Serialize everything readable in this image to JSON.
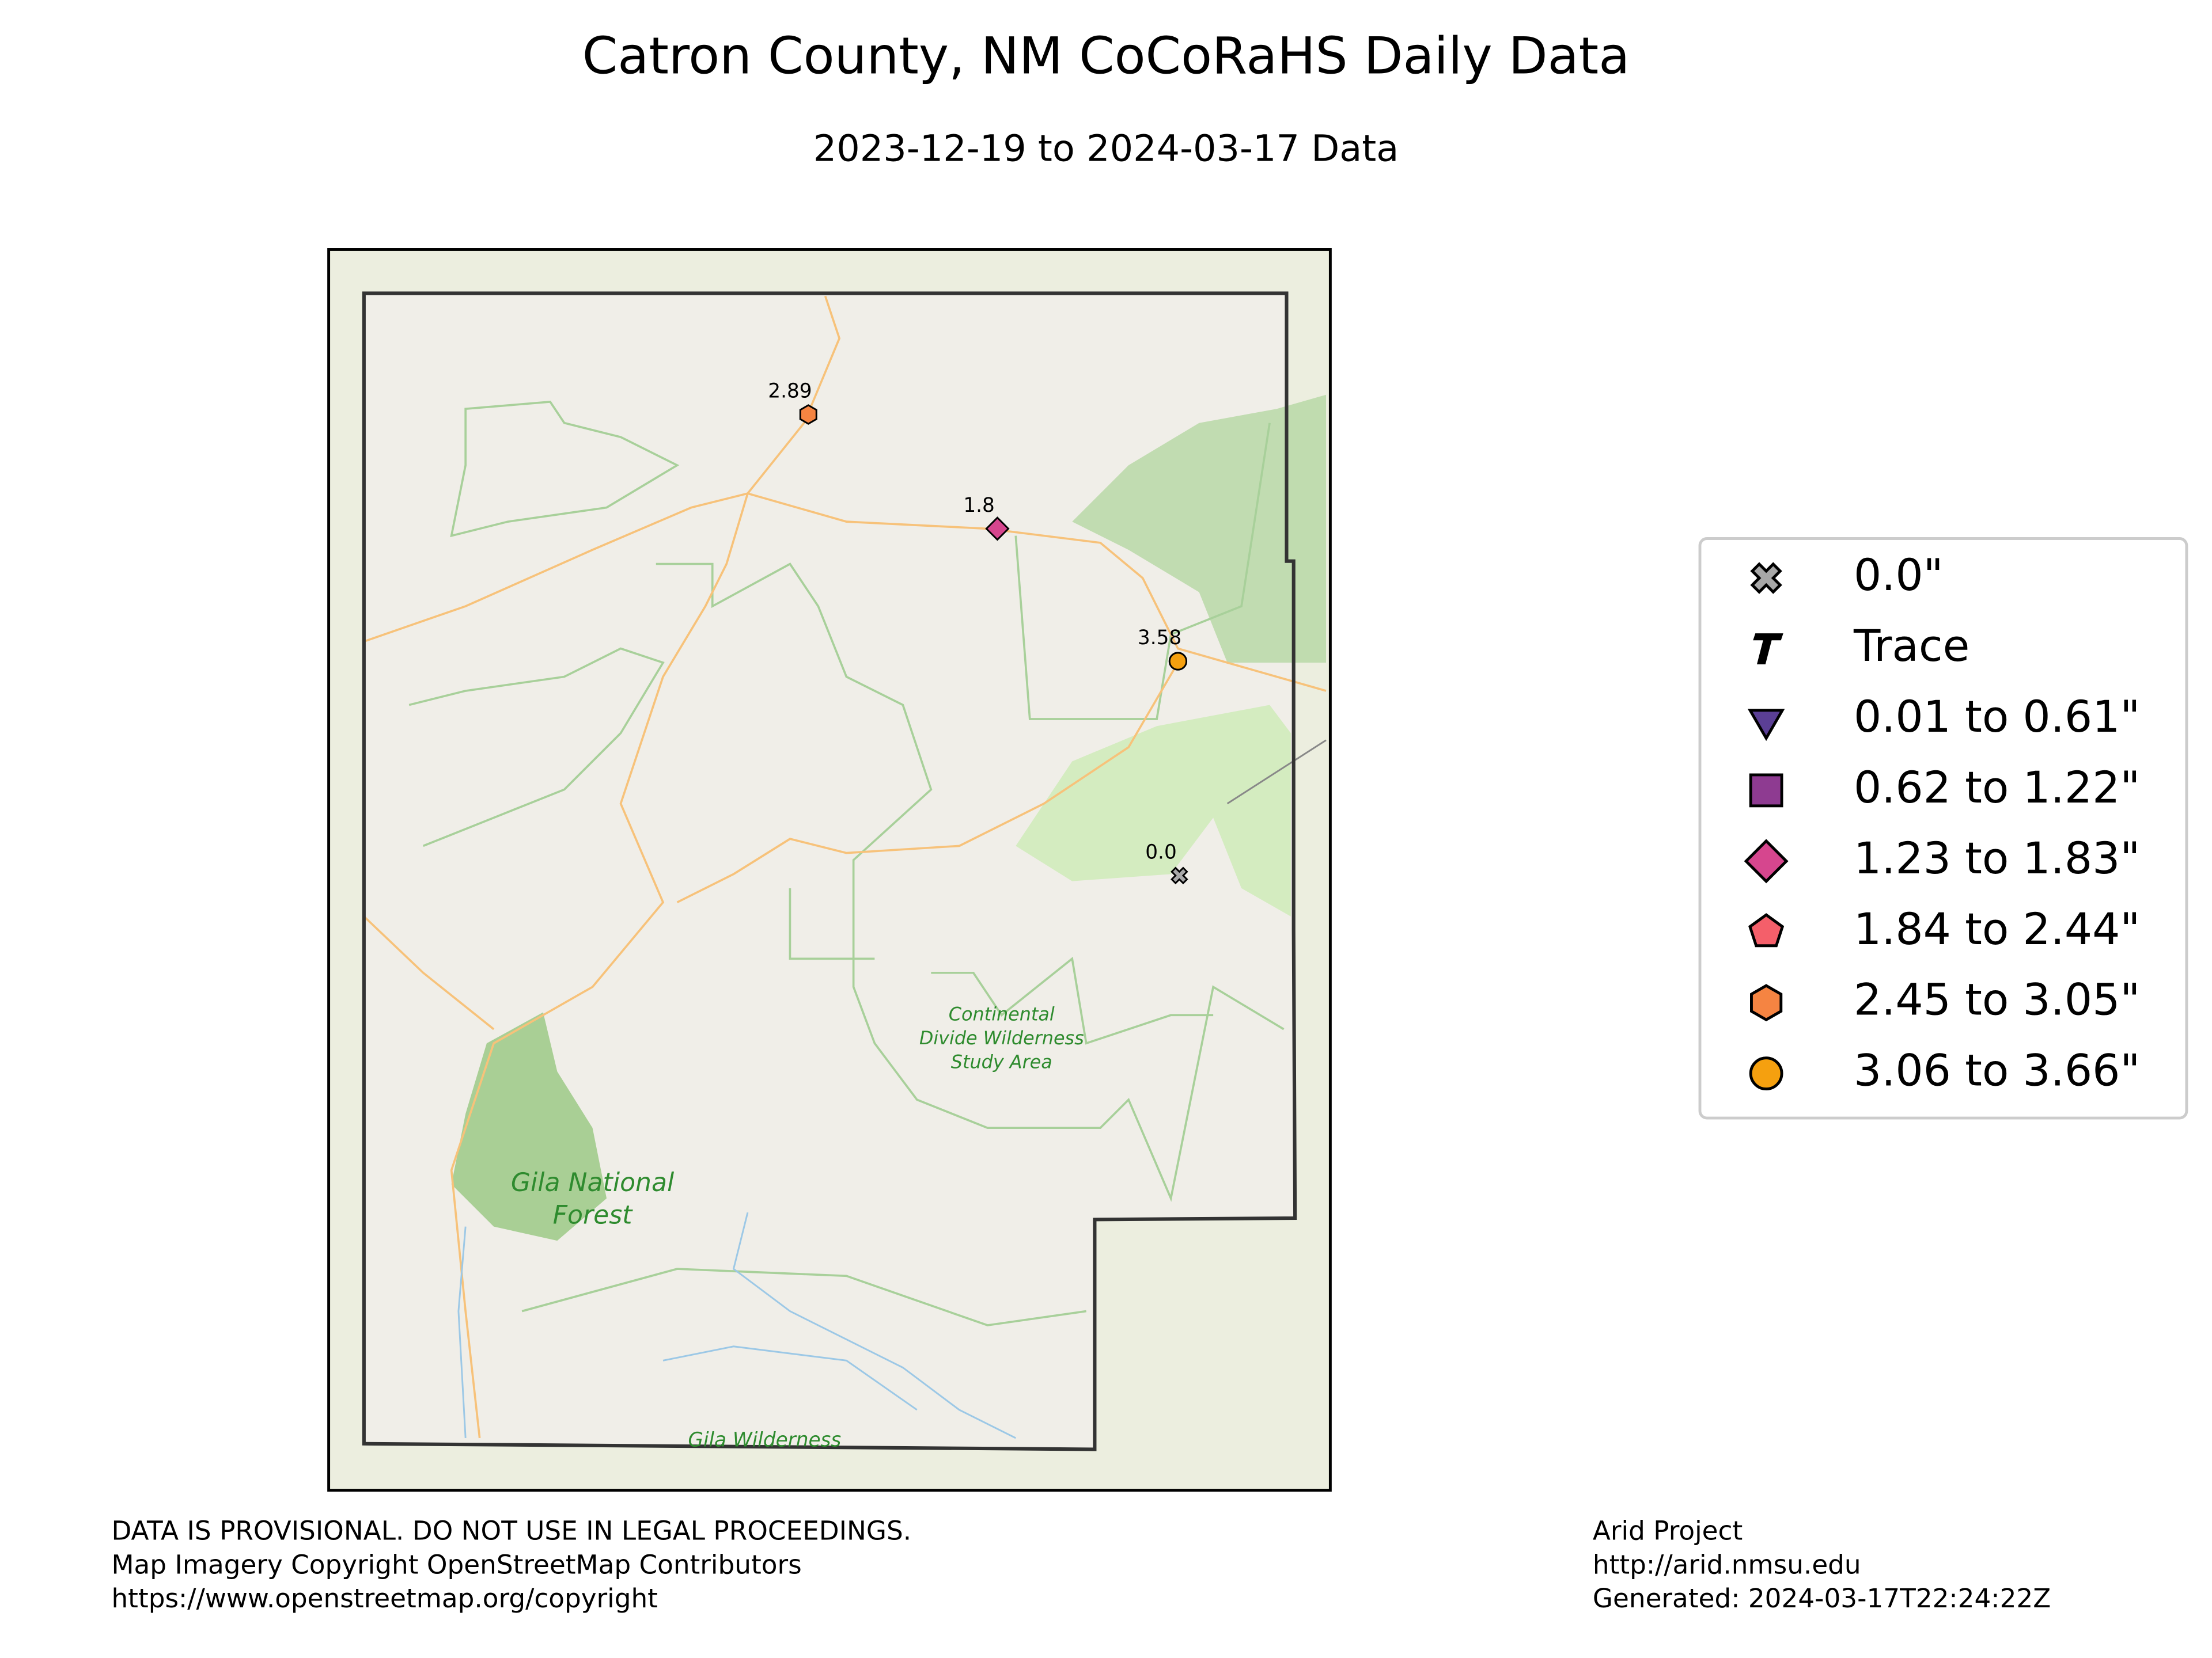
{
  "header": {
    "title": "Catron County, NM CoCoRaHS Daily Data",
    "subtitle": "2023-12-19 to 2024-03-17 Data"
  },
  "map": {
    "stations": [
      {
        "label": "2.89",
        "marker": "hexagon",
        "color": "#f58442"
      },
      {
        "label": "1.8",
        "marker": "diamond",
        "color": "#d6468e"
      },
      {
        "label": "3.58",
        "marker": "circle",
        "color": "#f5a00f"
      },
      {
        "label": "0.0",
        "marker": "x",
        "color": "#a8a8a8"
      }
    ],
    "places": [
      {
        "lines": [
          "Continental",
          "Divide Wilderness",
          "Study Area"
        ]
      },
      {
        "lines": [
          "Gila National",
          "Forest"
        ]
      },
      {
        "lines": [
          "Gila Wilderness"
        ]
      }
    ]
  },
  "legend": {
    "entries": [
      {
        "label": "0.0\"",
        "marker": "x",
        "color": "#a8a8a8"
      },
      {
        "label": "Trace",
        "marker": "trace",
        "color": "#000000"
      },
      {
        "label": "0.01 to 0.61\"",
        "marker": "triangle",
        "color": "#5b3f95"
      },
      {
        "label": "0.62 to 1.22\"",
        "marker": "square",
        "color": "#8e3b91"
      },
      {
        "label": "1.23 to 1.83\"",
        "marker": "diamond",
        "color": "#d6468e"
      },
      {
        "label": "1.84 to 2.44\"",
        "marker": "pentagon",
        "color": "#f45f6a"
      },
      {
        "label": "2.45 to 3.05\"",
        "marker": "hexagon",
        "color": "#f58442"
      },
      {
        "label": "3.06 to 3.66\"",
        "marker": "circle",
        "color": "#f5a00f"
      }
    ]
  },
  "footer": {
    "left": [
      "DATA IS PROVISIONAL. DO NOT USE IN LEGAL PROCEEDINGS.",
      "Map Imagery Copyright OpenStreetMap Contributors",
      "https://www.openstreetmap.org/copyright"
    ],
    "right": [
      "Arid Project",
      "http://arid.nmsu.edu",
      "Generated: 2024-03-17T22:24:22Z"
    ]
  }
}
